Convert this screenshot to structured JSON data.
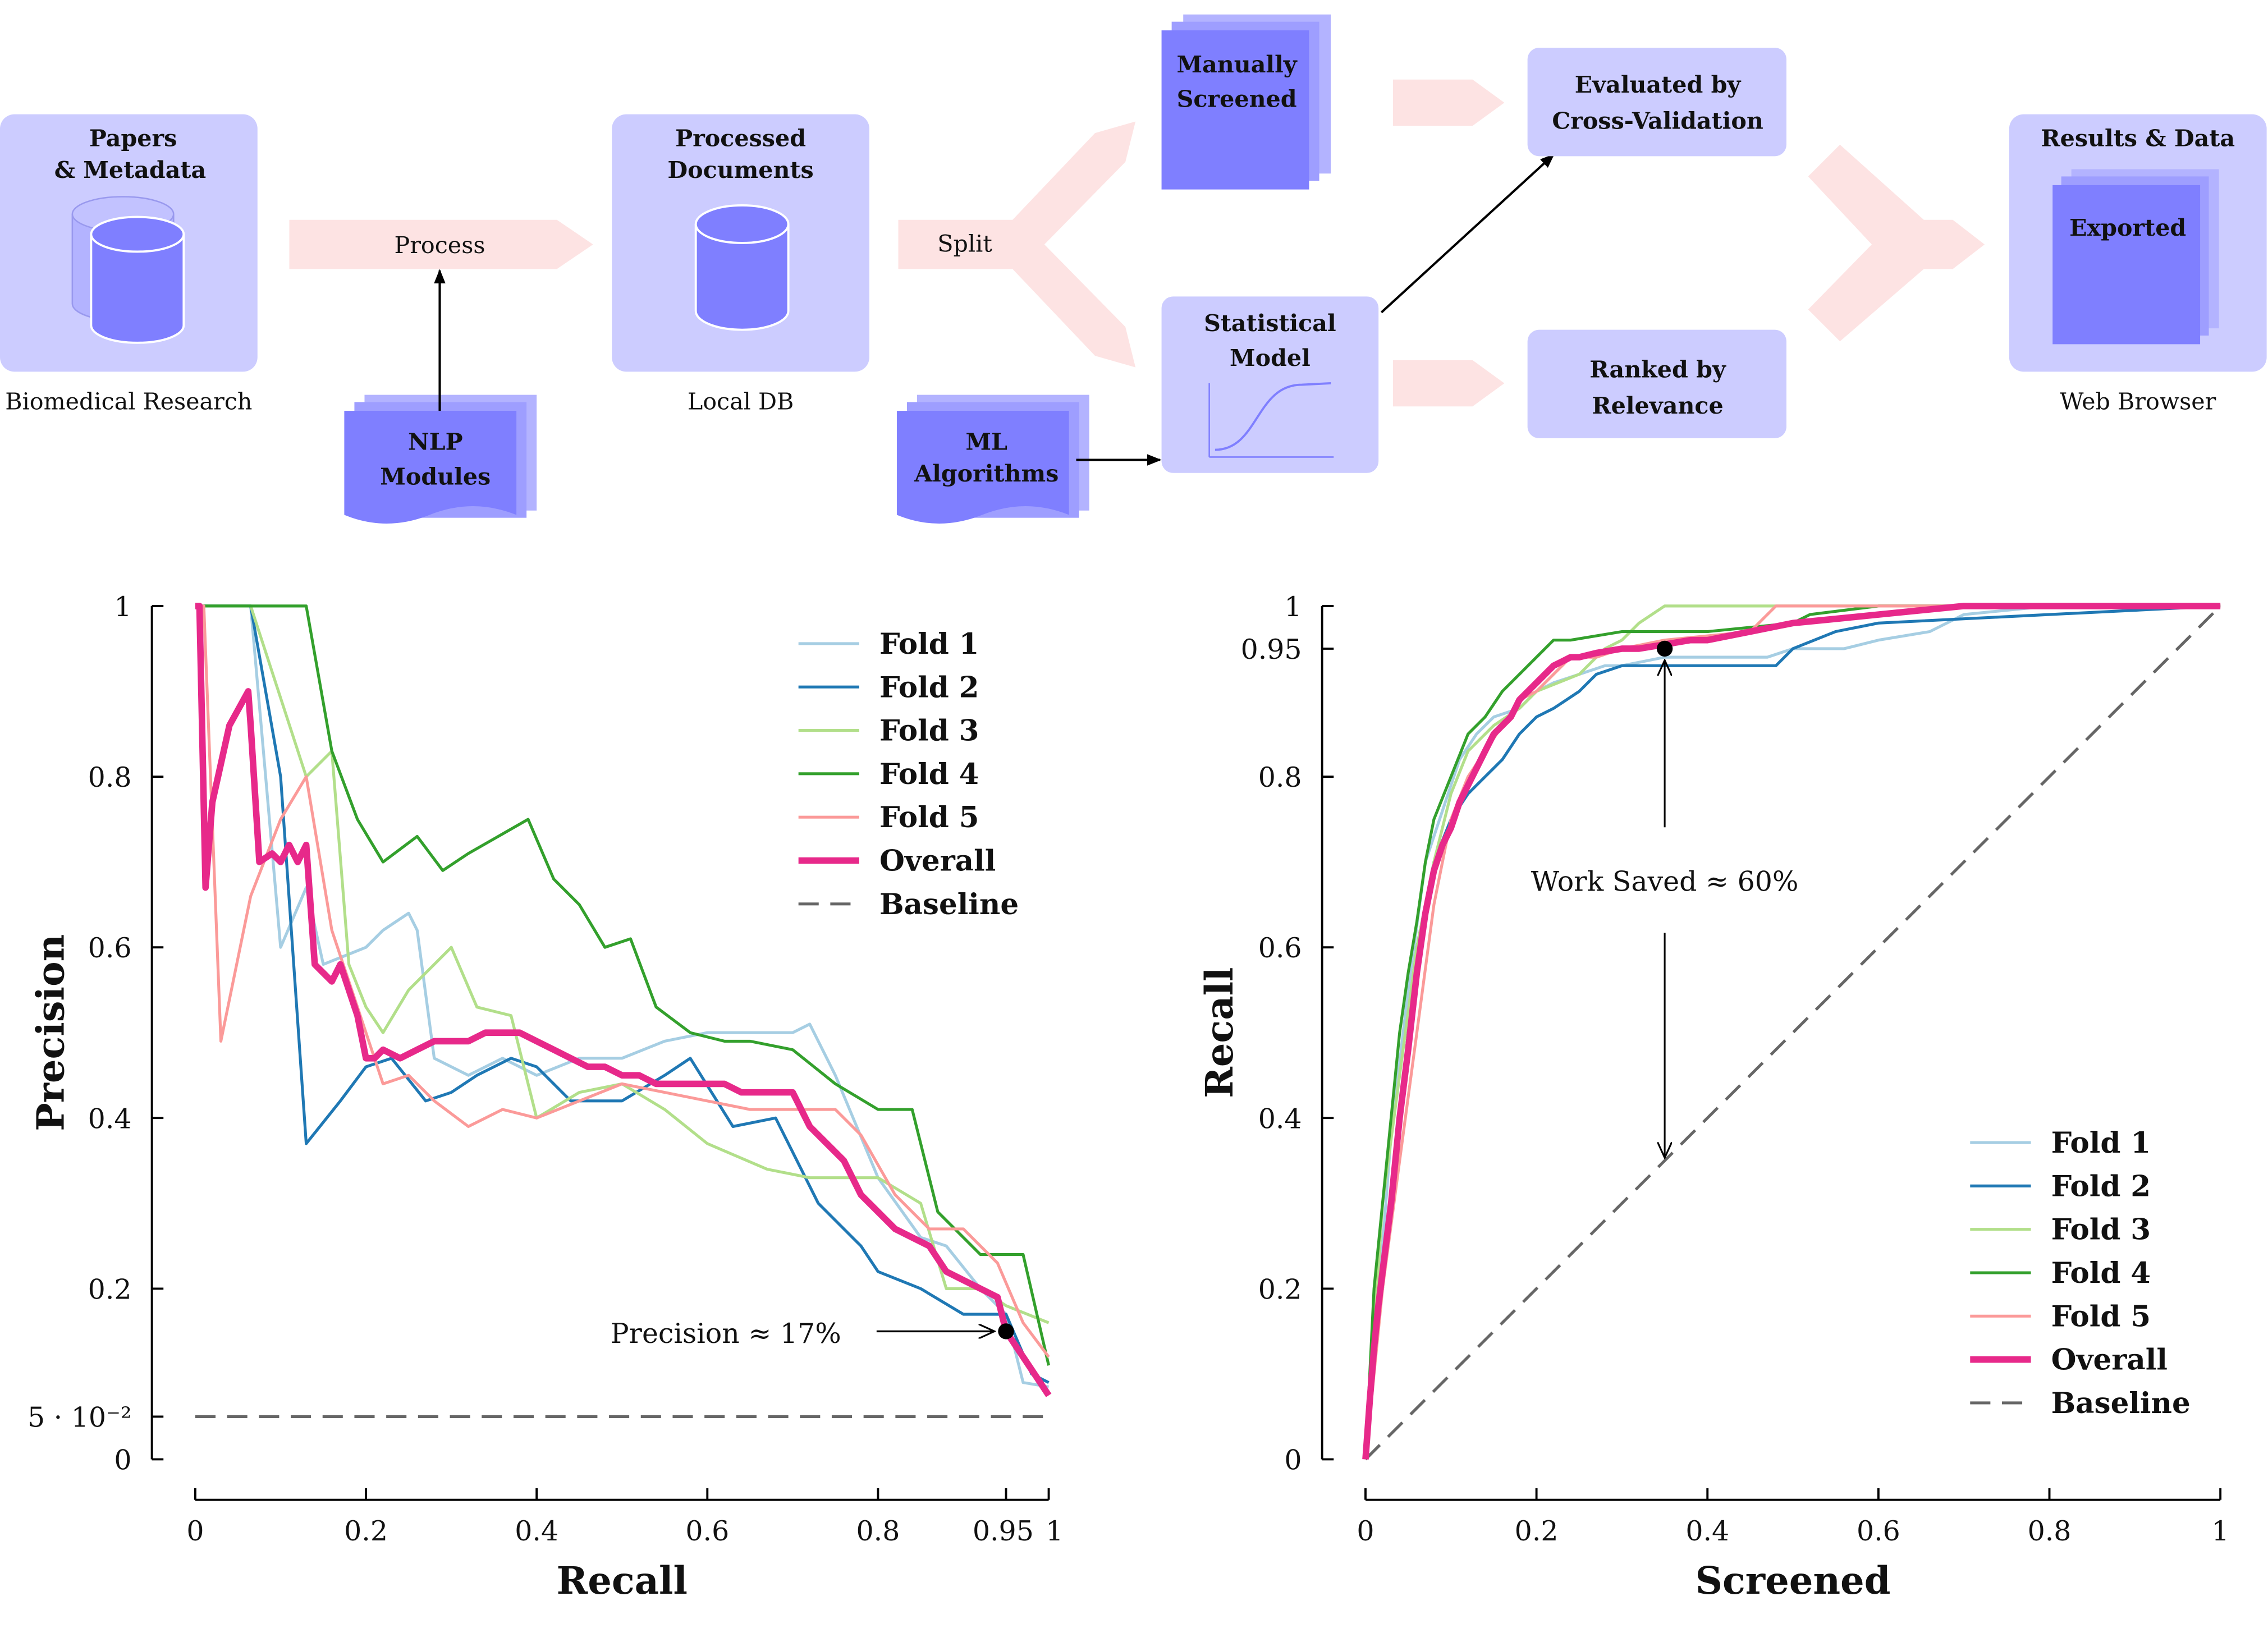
{
  "colors": {
    "box_fill": "#ccccff",
    "doc_fill": "#7f7fff",
    "arrow_fill": "#fde3e3",
    "fold1": "#a6cee3",
    "fold2": "#1f78b4",
    "fold3": "#b2df8a",
    "fold4": "#33a02c",
    "fold5": "#fb9a99",
    "overall": "#e7298a",
    "baseline": "#666666"
  },
  "diagram": {
    "papers": {
      "title_1": "Papers",
      "title_2": "& Metadata",
      "caption": "Biomedical Research",
      "icon": "database-icon"
    },
    "process_label": "Process",
    "nlp": {
      "line_1": "NLP",
      "line_2": "Modules",
      "icon": "document-stack-icon"
    },
    "processed": {
      "title_1": "Processed",
      "title_2": "Documents",
      "caption": "Local DB",
      "icon": "database-icon"
    },
    "split_label": "Split",
    "ml": {
      "line_1": "ML",
      "line_2": "Algorithms",
      "icon": "document-stack-icon"
    },
    "manually": {
      "line_1": "Manually",
      "line_2": "Screened"
    },
    "model": {
      "line_1": "Statistical",
      "line_2": "Model",
      "icon": "sigmoid-curve-icon"
    },
    "evaluated": {
      "line_1": "Evaluated by",
      "line_2": "Cross-Validation"
    },
    "ranked": {
      "line_1": "Ranked by",
      "line_2": "Relevance"
    },
    "results": {
      "title": "Results & Data",
      "exported": "Exported",
      "caption": "Web Browser"
    }
  },
  "chart_data": [
    {
      "type": "line",
      "xlabel": "Recall",
      "ylabel": "Precision",
      "xlim": [
        0,
        1
      ],
      "ylim": [
        0,
        1
      ],
      "x_ticks": [
        "0",
        "0.2",
        "0.4",
        "0.6",
        "0.8",
        "0.95",
        "1"
      ],
      "x_tick_values": [
        0,
        0.2,
        0.4,
        0.6,
        0.8,
        0.95,
        1
      ],
      "y_ticks": [
        "0",
        "5 · 10⁻²",
        "0.2",
        "0.4",
        "0.6",
        "0.8",
        "1"
      ],
      "y_tick_values": [
        0,
        0.05,
        0.2,
        0.4,
        0.6,
        0.8,
        1
      ],
      "legend_position": "top-right",
      "annotation": {
        "text": "Precision ≈ 17%",
        "point": [
          0.95,
          0.15
        ]
      },
      "series": [
        {
          "name": "Fold 1",
          "color": "#a6cee3",
          "x": [
            0,
            0.01,
            0.065,
            0.1,
            0.13,
            0.15,
            0.2,
            0.22,
            0.25,
            0.26,
            0.28,
            0.32,
            0.36,
            0.4,
            0.45,
            0.5,
            0.55,
            0.6,
            0.65,
            0.7,
            0.72,
            0.75,
            0.8,
            0.85,
            0.88,
            0.92,
            0.95,
            0.97,
            1
          ],
          "y": [
            1,
            1,
            1,
            0.6,
            0.67,
            0.58,
            0.6,
            0.62,
            0.64,
            0.62,
            0.47,
            0.45,
            0.47,
            0.45,
            0.47,
            0.47,
            0.49,
            0.5,
            0.5,
            0.5,
            0.51,
            0.45,
            0.33,
            0.26,
            0.25,
            0.2,
            0.17,
            0.09,
            0.085
          ]
        },
        {
          "name": "Fold 2",
          "color": "#1f78b4",
          "x": [
            0,
            0.01,
            0.065,
            0.1,
            0.13,
            0.17,
            0.2,
            0.23,
            0.27,
            0.3,
            0.33,
            0.37,
            0.4,
            0.44,
            0.5,
            0.55,
            0.58,
            0.63,
            0.68,
            0.73,
            0.78,
            0.8,
            0.85,
            0.9,
            0.95,
            0.98,
            1
          ],
          "y": [
            1,
            1,
            1,
            0.8,
            0.37,
            0.42,
            0.46,
            0.47,
            0.42,
            0.43,
            0.45,
            0.47,
            0.46,
            0.42,
            0.42,
            0.45,
            0.47,
            0.39,
            0.4,
            0.3,
            0.25,
            0.22,
            0.2,
            0.17,
            0.17,
            0.1,
            0.09
          ]
        },
        {
          "name": "Fold 3",
          "color": "#b2df8a",
          "x": [
            0,
            0.01,
            0.065,
            0.13,
            0.16,
            0.18,
            0.2,
            0.22,
            0.25,
            0.3,
            0.33,
            0.37,
            0.4,
            0.45,
            0.5,
            0.55,
            0.6,
            0.67,
            0.72,
            0.8,
            0.85,
            0.88,
            0.92,
            0.95,
            1
          ],
          "y": [
            1,
            1,
            1,
            0.8,
            0.83,
            0.58,
            0.53,
            0.5,
            0.55,
            0.6,
            0.53,
            0.52,
            0.4,
            0.43,
            0.44,
            0.41,
            0.37,
            0.34,
            0.33,
            0.33,
            0.3,
            0.2,
            0.2,
            0.18,
            0.16
          ]
        },
        {
          "name": "Fold 4",
          "color": "#33a02c",
          "x": [
            0,
            0.01,
            0.13,
            0.16,
            0.19,
            0.22,
            0.26,
            0.29,
            0.32,
            0.39,
            0.42,
            0.45,
            0.48,
            0.51,
            0.54,
            0.58,
            0.62,
            0.65,
            0.7,
            0.75,
            0.8,
            0.84,
            0.87,
            0.92,
            0.97,
            1
          ],
          "y": [
            1,
            1,
            1,
            0.83,
            0.75,
            0.7,
            0.73,
            0.69,
            0.71,
            0.75,
            0.68,
            0.65,
            0.6,
            0.61,
            0.53,
            0.5,
            0.49,
            0.49,
            0.48,
            0.44,
            0.41,
            0.41,
            0.29,
            0.24,
            0.24,
            0.11
          ]
        },
        {
          "name": "Fold 5",
          "color": "#fb9a99",
          "x": [
            0,
            0.01,
            0.03,
            0.065,
            0.1,
            0.13,
            0.16,
            0.2,
            0.22,
            0.25,
            0.28,
            0.32,
            0.36,
            0.4,
            0.45,
            0.5,
            0.55,
            0.6,
            0.65,
            0.7,
            0.75,
            0.78,
            0.82,
            0.86,
            0.9,
            0.94,
            0.97,
            1
          ],
          "y": [
            1,
            1,
            0.49,
            0.66,
            0.75,
            0.8,
            0.62,
            0.5,
            0.44,
            0.45,
            0.42,
            0.39,
            0.41,
            0.4,
            0.42,
            0.44,
            0.43,
            0.42,
            0.41,
            0.41,
            0.41,
            0.38,
            0.31,
            0.27,
            0.27,
            0.23,
            0.16,
            0.12
          ]
        },
        {
          "name": "Overall",
          "color": "#e7298a",
          "x": [
            0,
            0.005,
            0.012,
            0.02,
            0.04,
            0.062,
            0.065,
            0.075,
            0.09,
            0.1,
            0.11,
            0.12,
            0.13,
            0.14,
            0.15,
            0.16,
            0.17,
            0.18,
            0.19,
            0.2,
            0.21,
            0.22,
            0.24,
            0.26,
            0.28,
            0.3,
            0.32,
            0.34,
            0.36,
            0.38,
            0.4,
            0.42,
            0.44,
            0.46,
            0.48,
            0.5,
            0.52,
            0.54,
            0.56,
            0.58,
            0.6,
            0.62,
            0.64,
            0.66,
            0.68,
            0.7,
            0.72,
            0.74,
            0.76,
            0.78,
            0.8,
            0.82,
            0.84,
            0.86,
            0.88,
            0.9,
            0.92,
            0.94,
            0.95,
            0.97,
            0.99,
            1
          ],
          "y": [
            1,
            1,
            0.67,
            0.77,
            0.86,
            0.9,
            0.86,
            0.7,
            0.71,
            0.7,
            0.72,
            0.7,
            0.72,
            0.58,
            0.57,
            0.56,
            0.58,
            0.55,
            0.52,
            0.47,
            0.47,
            0.48,
            0.47,
            0.48,
            0.49,
            0.49,
            0.49,
            0.5,
            0.5,
            0.5,
            0.49,
            0.48,
            0.47,
            0.46,
            0.46,
            0.45,
            0.45,
            0.44,
            0.44,
            0.44,
            0.44,
            0.44,
            0.43,
            0.43,
            0.43,
            0.43,
            0.39,
            0.37,
            0.35,
            0.31,
            0.29,
            0.27,
            0.26,
            0.25,
            0.22,
            0.21,
            0.2,
            0.19,
            0.15,
            0.12,
            0.09,
            0.075
          ]
        },
        {
          "name": "Baseline",
          "color": "#666666",
          "dashed": true,
          "x": [
            0,
            1
          ],
          "y": [
            0.05,
            0.05
          ]
        }
      ]
    },
    {
      "type": "line",
      "xlabel": "Screened",
      "ylabel": "Recall",
      "xlim": [
        0,
        1
      ],
      "ylim": [
        0,
        1
      ],
      "x_ticks": [
        "0",
        "0.2",
        "0.4",
        "0.6",
        "0.8",
        "1"
      ],
      "x_tick_values": [
        0,
        0.2,
        0.4,
        0.6,
        0.8,
        1
      ],
      "y_ticks": [
        "0",
        "0.2",
        "0.4",
        "0.6",
        "0.8",
        "0.95",
        "1"
      ],
      "y_tick_values": [
        0,
        0.2,
        0.4,
        0.6,
        0.8,
        0.95,
        1
      ],
      "legend_position": "bottom-right",
      "annotation": {
        "text": "Work Saved ≈ 60%",
        "point": [
          0.35,
          0.95
        ],
        "arrow_to": [
          0.35,
          0.35
        ]
      },
      "series": [
        {
          "name": "Fold 1",
          "color": "#a6cee3",
          "x": [
            0,
            0.01,
            0.02,
            0.03,
            0.05,
            0.07,
            0.09,
            0.11,
            0.13,
            0.15,
            0.18,
            0.2,
            0.22,
            0.25,
            0.28,
            0.3,
            0.35,
            0.4,
            0.47,
            0.5,
            0.56,
            0.6,
            0.66,
            0.7,
            0.8,
            1
          ],
          "y": [
            0,
            0.12,
            0.25,
            0.38,
            0.55,
            0.7,
            0.76,
            0.82,
            0.85,
            0.87,
            0.88,
            0.9,
            0.91,
            0.92,
            0.93,
            0.93,
            0.94,
            0.94,
            0.94,
            0.95,
            0.95,
            0.96,
            0.97,
            0.99,
            1,
            1
          ]
        },
        {
          "name": "Fold 2",
          "color": "#1f78b4",
          "x": [
            0,
            0.005,
            0.02,
            0.03,
            0.04,
            0.05,
            0.06,
            0.08,
            0.1,
            0.12,
            0.14,
            0.16,
            0.18,
            0.2,
            0.22,
            0.25,
            0.27,
            0.3,
            0.35,
            0.4,
            0.48,
            0.5,
            0.55,
            0.6,
            1
          ],
          "y": [
            0,
            0.1,
            0.2,
            0.3,
            0.4,
            0.5,
            0.6,
            0.7,
            0.75,
            0.78,
            0.8,
            0.82,
            0.85,
            0.87,
            0.88,
            0.9,
            0.92,
            0.93,
            0.93,
            0.93,
            0.93,
            0.95,
            0.97,
            0.98,
            1
          ]
        },
        {
          "name": "Fold 3",
          "color": "#b2df8a",
          "x": [
            0,
            0.01,
            0.02,
            0.04,
            0.06,
            0.08,
            0.1,
            0.12,
            0.15,
            0.18,
            0.2,
            0.25,
            0.28,
            0.3,
            0.32,
            0.35,
            1
          ],
          "y": [
            0,
            0.15,
            0.3,
            0.45,
            0.6,
            0.7,
            0.78,
            0.83,
            0.86,
            0.88,
            0.9,
            0.92,
            0.95,
            0.96,
            0.98,
            1,
            1
          ]
        },
        {
          "name": "Fold 4",
          "color": "#33a02c",
          "x": [
            0,
            0.01,
            0.02,
            0.03,
            0.04,
            0.05,
            0.06,
            0.07,
            0.08,
            0.1,
            0.12,
            0.14,
            0.16,
            0.18,
            0.2,
            0.22,
            0.24,
            0.3,
            0.4,
            0.5,
            0.52,
            0.6,
            1
          ],
          "y": [
            0,
            0.2,
            0.3,
            0.4,
            0.5,
            0.57,
            0.63,
            0.7,
            0.75,
            0.8,
            0.85,
            0.87,
            0.9,
            0.92,
            0.94,
            0.96,
            0.96,
            0.97,
            0.97,
            0.98,
            0.99,
            1,
            1
          ]
        },
        {
          "name": "Fold 5",
          "color": "#fb9a99",
          "x": [
            0,
            0.01,
            0.02,
            0.04,
            0.06,
            0.08,
            0.1,
            0.12,
            0.14,
            0.16,
            0.18,
            0.2,
            0.22,
            0.24,
            0.27,
            0.3,
            0.35,
            0.45,
            0.48,
            0.55,
            0.6,
            1
          ],
          "y": [
            0,
            0.1,
            0.2,
            0.35,
            0.5,
            0.65,
            0.75,
            0.8,
            0.83,
            0.86,
            0.89,
            0.9,
            0.92,
            0.94,
            0.94,
            0.95,
            0.96,
            0.97,
            1,
            1,
            1,
            1
          ]
        },
        {
          "name": "Overall",
          "color": "#e7298a",
          "x": [
            0,
            0.005,
            0.01,
            0.015,
            0.02,
            0.03,
            0.04,
            0.05,
            0.06,
            0.07,
            0.08,
            0.09,
            0.1,
            0.11,
            0.12,
            0.13,
            0.14,
            0.15,
            0.16,
            0.17,
            0.18,
            0.19,
            0.2,
            0.21,
            0.22,
            0.23,
            0.24,
            0.25,
            0.27,
            0.3,
            0.32,
            0.35,
            0.38,
            0.4,
            0.45,
            0.5,
            0.55,
            0.6,
            0.7,
            0.8,
            0.9,
            1
          ],
          "y": [
            0,
            0.07,
            0.13,
            0.18,
            0.22,
            0.3,
            0.4,
            0.48,
            0.57,
            0.64,
            0.69,
            0.72,
            0.74,
            0.77,
            0.79,
            0.81,
            0.83,
            0.85,
            0.86,
            0.87,
            0.89,
            0.9,
            0.91,
            0.92,
            0.93,
            0.935,
            0.94,
            0.94,
            0.945,
            0.95,
            0.95,
            0.955,
            0.96,
            0.96,
            0.97,
            0.98,
            0.985,
            0.99,
            1,
            1,
            1,
            1
          ]
        },
        {
          "name": "Baseline",
          "color": "#666666",
          "dashed": true,
          "x": [
            0,
            1
          ],
          "y": [
            0,
            1
          ]
        }
      ]
    }
  ]
}
